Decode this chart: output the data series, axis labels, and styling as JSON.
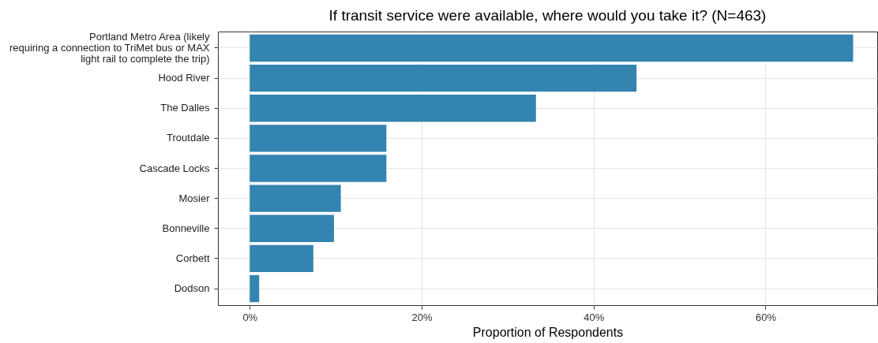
{
  "chart_data": {
    "type": "bar",
    "orientation": "horizontal",
    "title": "If transit service were available, where would you take it? (N=463)",
    "xlabel": "Proportion of Respondents",
    "categories": [
      "Portland Metro Area (likely\nrequiring a connection to TriMet bus or MAX\nlight rail to complete the trip)",
      "Hood River",
      "The Dalles",
      "Troutdale",
      "Cascade Locks",
      "Mosier",
      "Bonneville",
      "Corbett",
      "Dodson"
    ],
    "values": [
      70.2,
      45.0,
      33.3,
      15.9,
      15.9,
      10.6,
      9.8,
      7.4,
      1.1
    ],
    "color": "#3384b0",
    "xlim": [
      -3.7,
      73
    ],
    "xticks": [
      {
        "value": 0,
        "label": "0%"
      },
      {
        "value": 20,
        "label": "20%"
      },
      {
        "value": 40,
        "label": "40%"
      },
      {
        "value": 60,
        "label": "60%"
      }
    ],
    "grid": true
  }
}
